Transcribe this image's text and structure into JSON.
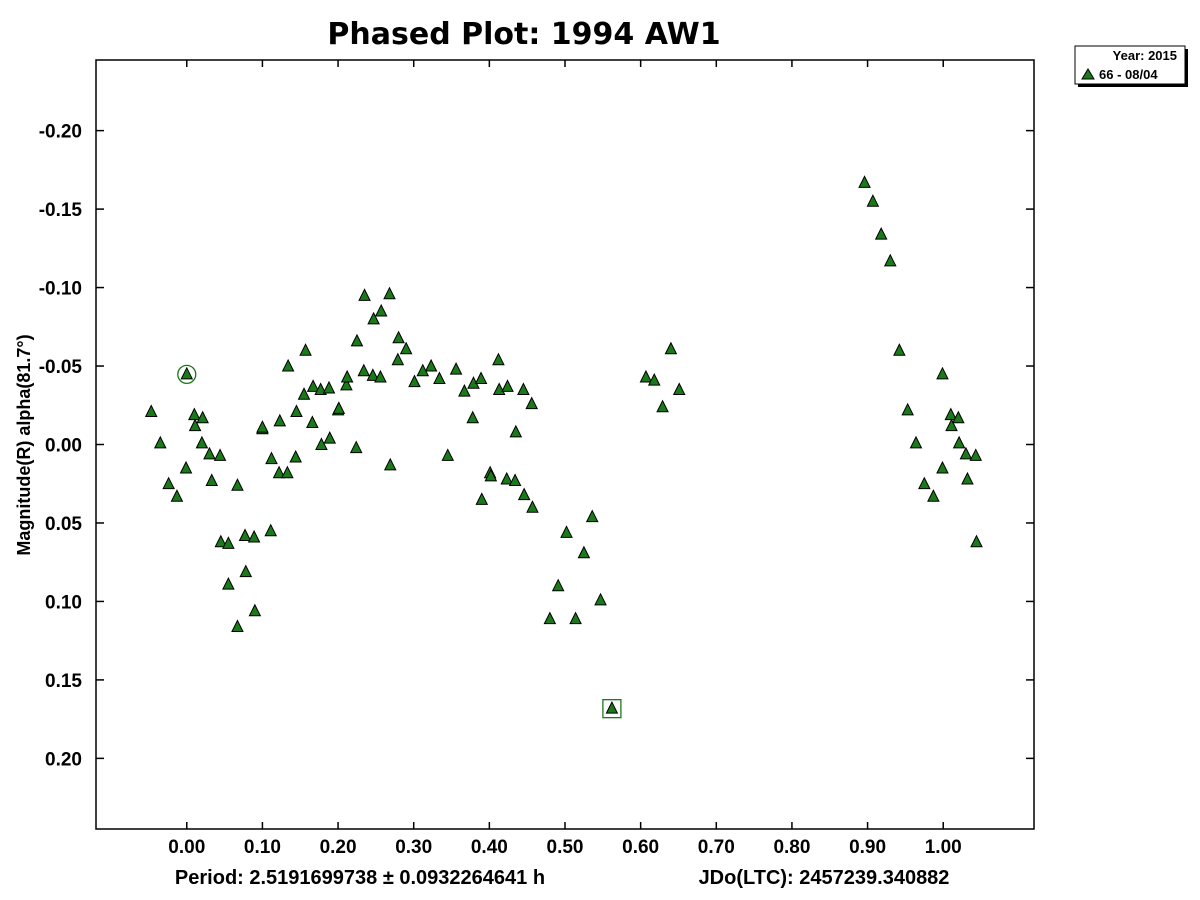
{
  "chart_data": {
    "type": "scatter",
    "title": "Phased Plot: 1994 AW1",
    "ylabel": "Magnitude(R) alpha(81.7°)",
    "xlabel": "",
    "xlim": [
      -0.12,
      1.12
    ],
    "ylim": [
      0.245,
      -0.245
    ],
    "y_inverted": true,
    "grid": false,
    "x_ticks": [
      0.0,
      0.1,
      0.2,
      0.3,
      0.4,
      0.5,
      0.6,
      0.7,
      0.8,
      0.9,
      1.0
    ],
    "x_tick_labels": [
      "0.00",
      "0.10",
      "0.20",
      "0.30",
      "0.40",
      "0.50",
      "0.60",
      "0.70",
      "0.80",
      "0.90",
      "1.00"
    ],
    "y_ticks": [
      -0.2,
      -0.15,
      -0.1,
      -0.05,
      0.0,
      0.05,
      0.1,
      0.15,
      0.2
    ],
    "y_tick_labels": [
      "-0.20",
      "-0.15",
      "-0.10",
      "-0.05",
      "0.00",
      "0.05",
      "0.10",
      "0.15",
      "0.20"
    ],
    "legend": {
      "position": "outside-top-right",
      "header": "Year: 2015",
      "entries": [
        "66 - 08/04"
      ]
    },
    "marker_color": "#1a7a1a",
    "footer": {
      "period": "Period: 2.5191699738 ± 0.0932264641 h",
      "epoch": "JDo(LTC): 2457239.340882"
    },
    "series": [
      {
        "name": "66 - 08/04",
        "points": [
          [
            -0.047,
            -0.021
          ],
          [
            -0.035,
            -0.001
          ],
          [
            -0.024,
            0.025
          ],
          [
            -0.013,
            0.033
          ],
          [
            -0.001,
            0.015
          ],
          [
            0.01,
            -0.019
          ],
          [
            0.011,
            -0.012
          ],
          [
            0.021,
            -0.017
          ],
          [
            0.02,
            -0.001
          ],
          [
            0.03,
            0.006
          ],
          [
            0.033,
            0.023
          ],
          [
            0.044,
            0.007
          ],
          [
            0.045,
            0.062
          ],
          [
            0.055,
            0.063
          ],
          [
            0.055,
            0.089
          ],
          [
            0.067,
            0.116
          ],
          [
            0.067,
            0.026
          ],
          [
            0.077,
            0.058
          ],
          [
            0.078,
            0.081
          ],
          [
            0.089,
            0.059
          ],
          [
            0.09,
            0.106
          ],
          [
            0.1,
            -0.01
          ],
          [
            0.1,
            -0.011
          ],
          [
            0.111,
            0.055
          ],
          [
            0.112,
            0.009
          ],
          [
            0.122,
            0.018
          ],
          [
            0.123,
            -0.015
          ],
          [
            0.133,
            0.018
          ],
          [
            0.134,
            -0.05
          ],
          [
            0.144,
            0.008
          ],
          [
            0.145,
            -0.021
          ],
          [
            0.155,
            -0.032
          ],
          [
            0.157,
            -0.06
          ],
          [
            0.166,
            -0.014
          ],
          [
            0.167,
            -0.037
          ],
          [
            0.177,
            -0.035
          ],
          [
            0.178,
            0.0
          ],
          [
            0.188,
            -0.036
          ],
          [
            0.189,
            -0.004
          ],
          [
            0.2,
            -0.022
          ],
          [
            0.201,
            -0.023
          ],
          [
            0.211,
            -0.038
          ],
          [
            0.212,
            -0.043
          ],
          [
            0.224,
            0.002
          ],
          [
            0.225,
            -0.066
          ],
          [
            0.234,
            -0.047
          ],
          [
            0.235,
            -0.095
          ],
          [
            0.246,
            -0.044
          ],
          [
            0.247,
            -0.08
          ],
          [
            0.256,
            -0.043
          ],
          [
            0.257,
            -0.085
          ],
          [
            0.268,
            -0.096
          ],
          [
            0.269,
            0.013
          ],
          [
            0.279,
            -0.054
          ],
          [
            0.28,
            -0.068
          ],
          [
            0.29,
            -0.061
          ],
          [
            0.301,
            -0.04
          ],
          [
            0.312,
            -0.047
          ],
          [
            0.323,
            -0.05
          ],
          [
            0.334,
            -0.042
          ],
          [
            0.345,
            0.007
          ],
          [
            0.356,
            -0.048
          ],
          [
            0.367,
            -0.034
          ],
          [
            0.378,
            -0.017
          ],
          [
            0.379,
            -0.039
          ],
          [
            0.389,
            -0.042
          ],
          [
            0.39,
            0.035
          ],
          [
            0.401,
            0.018
          ],
          [
            0.402,
            0.02
          ],
          [
            0.412,
            -0.054
          ],
          [
            0.413,
            -0.035
          ],
          [
            0.423,
            0.022
          ],
          [
            0.424,
            -0.037
          ],
          [
            0.434,
            0.023
          ],
          [
            0.435,
            -0.008
          ],
          [
            0.445,
            -0.035
          ],
          [
            0.446,
            0.032
          ],
          [
            0.456,
            -0.026
          ],
          [
            0.457,
            0.04
          ],
          [
            0.48,
            0.111
          ],
          [
            0.491,
            0.09
          ],
          [
            0.502,
            0.056
          ],
          [
            0.514,
            0.111
          ],
          [
            0.525,
            0.069
          ],
          [
            0.536,
            0.046
          ],
          [
            0.547,
            0.099
          ],
          [
            0.607,
            -0.043
          ],
          [
            0.618,
            -0.041
          ],
          [
            0.629,
            -0.024
          ],
          [
            0.64,
            -0.061
          ],
          [
            0.651,
            -0.035
          ],
          [
            0.896,
            -0.167
          ],
          [
            0.907,
            -0.155
          ],
          [
            0.918,
            -0.134
          ],
          [
            0.93,
            -0.117
          ],
          [
            0.942,
            -0.06
          ],
          [
            0.953,
            -0.022
          ],
          [
            0.964,
            -0.001
          ],
          [
            0.975,
            0.025
          ],
          [
            0.987,
            0.033
          ],
          [
            0.999,
            -0.045
          ],
          [
            0.999,
            0.015
          ],
          [
            1.01,
            -0.019
          ],
          [
            1.011,
            -0.012
          ],
          [
            1.02,
            -0.017
          ],
          [
            1.021,
            -0.001
          ],
          [
            1.03,
            0.006
          ],
          [
            1.032,
            0.022
          ],
          [
            1.043,
            0.007
          ],
          [
            1.044,
            0.062
          ]
        ]
      }
    ],
    "highlighted": [
      {
        "marker": "circle",
        "x": 0.0,
        "y": -0.045
      },
      {
        "marker": "square",
        "x": 0.562,
        "y": 0.168
      }
    ]
  }
}
